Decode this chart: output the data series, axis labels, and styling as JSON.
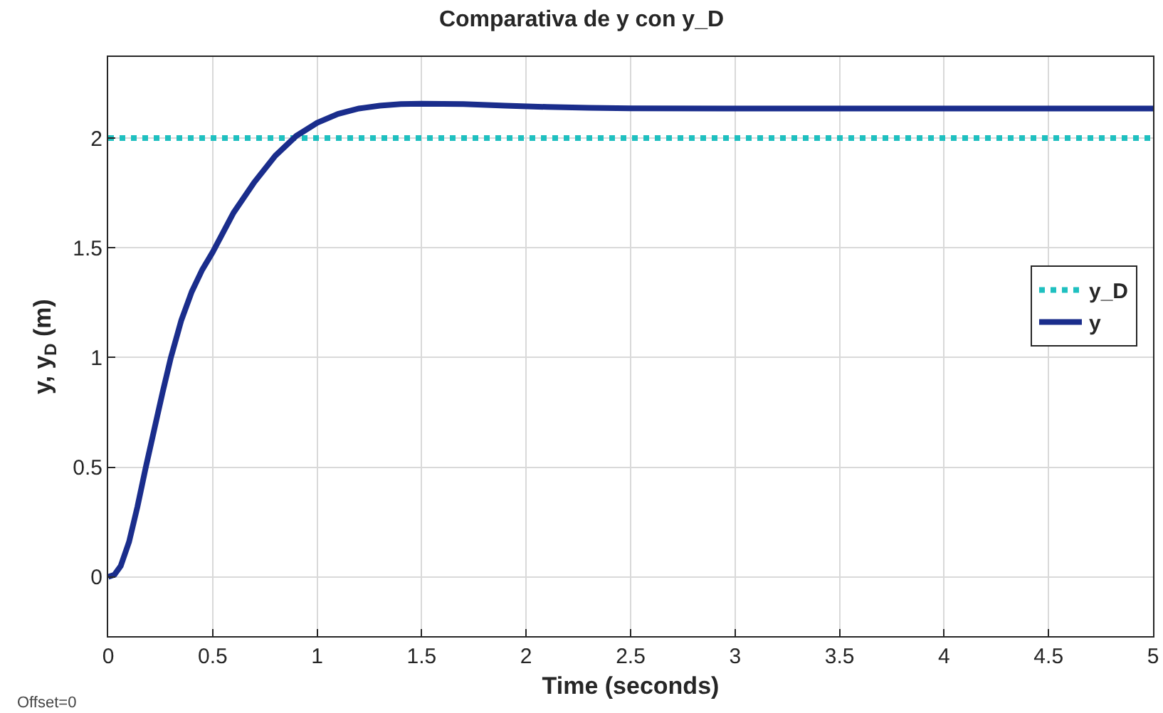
{
  "chart_data": {
    "type": "line",
    "title": "Comparativa de y con y_D",
    "xlabel": "Time (seconds)",
    "ylabel": "y, y$_{D}$ (m)",
    "annotations": [
      "Offset=0"
    ],
    "xlim": [
      0,
      5
    ],
    "xticks": [
      0,
      0.5,
      1,
      1.5,
      2,
      2.5,
      3,
      3.5,
      4,
      4.5,
      5
    ],
    "ylim": [
      -0.27,
      2.37
    ],
    "yticks": [
      0,
      0.5,
      1,
      1.5,
      2
    ],
    "grid": true,
    "legend": "right",
    "marker": "none",
    "series": [
      {
        "name": "y_D",
        "color": "#1fc0c0",
        "line_style": "dotted",
        "x": [
          0,
          5
        ],
        "values": [
          2,
          2
        ]
      },
      {
        "name": "y",
        "color": "#1a2d8c",
        "line_style": "solid",
        "x": [
          0,
          0.03,
          0.06,
          0.1,
          0.14,
          0.18,
          0.22,
          0.26,
          0.3,
          0.35,
          0.4,
          0.45,
          0.5,
          0.6,
          0.7,
          0.8,
          0.9,
          1.0,
          1.1,
          1.2,
          1.3,
          1.4,
          1.5,
          1.7,
          1.9,
          2.1,
          2.3,
          2.5,
          3,
          4,
          5
        ],
        "values": [
          0,
          0.01,
          0.05,
          0.16,
          0.32,
          0.5,
          0.67,
          0.84,
          1.0,
          1.17,
          1.3,
          1.4,
          1.48,
          1.66,
          1.8,
          1.92,
          2.01,
          2.07,
          2.11,
          2.135,
          2.148,
          2.155,
          2.157,
          2.155,
          2.148,
          2.142,
          2.138,
          2.136,
          2.135,
          2.135,
          2.135
        ]
      }
    ]
  }
}
